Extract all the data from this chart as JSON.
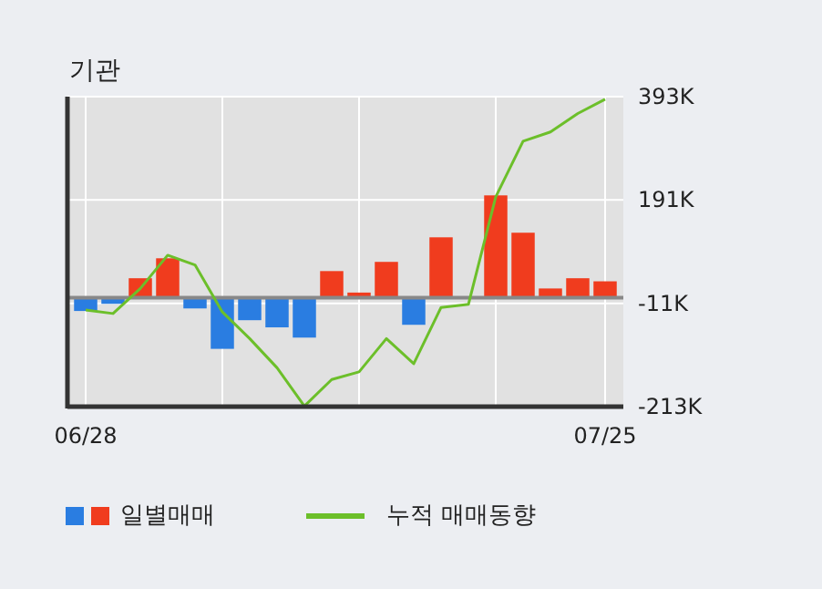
{
  "chart_data": {
    "type": "bar",
    "title": "기관",
    "categories": [
      "06/28",
      null,
      null,
      null,
      null,
      null,
      null,
      null,
      null,
      null,
      null,
      null,
      null,
      null,
      null,
      null,
      null,
      null,
      null,
      "07/25"
    ],
    "series": [
      {
        "name": "일별매매",
        "colors": [
          "#2a7de1",
          "#2a7de1",
          "#f03c1e",
          "#f03c1e",
          "#2a7de1",
          "#2a7de1",
          "#2a7de1",
          "#2a7de1",
          "#2a7de1",
          "#f03c1e",
          "#f03c1e",
          "#f03c1e",
          "#2a7de1",
          "#f03c1e",
          "#f03c1e",
          "#f03c1e",
          "#f03c1e",
          "#f03c1e",
          "#f03c1e",
          "#f03c1e"
        ],
        "values": [
          -26,
          -12,
          38,
          77,
          -21,
          -100,
          -44,
          -58,
          -78,
          52,
          10,
          70,
          -53,
          118,
          0,
          200,
          127,
          18,
          38,
          32
        ]
      },
      {
        "name": "누적 매매동향",
        "type": "line",
        "color": "#6cbf2a",
        "values": [
          -24,
          -31,
          18,
          83,
          64,
          -28,
          -80,
          -137,
          -212,
          -160,
          -145,
          -80,
          -129,
          -19,
          -13,
          197,
          306,
          324,
          360,
          388
        ]
      }
    ],
    "ylim": [
      -213,
      393
    ],
    "yticks": [
      {
        "value": -213,
        "label": "-213K"
      },
      {
        "value": -11,
        "label": "-11K"
      },
      {
        "value": 191,
        "label": "191K"
      },
      {
        "value": 393,
        "label": "393K"
      }
    ],
    "grid": true,
    "legend": "bottom"
  }
}
